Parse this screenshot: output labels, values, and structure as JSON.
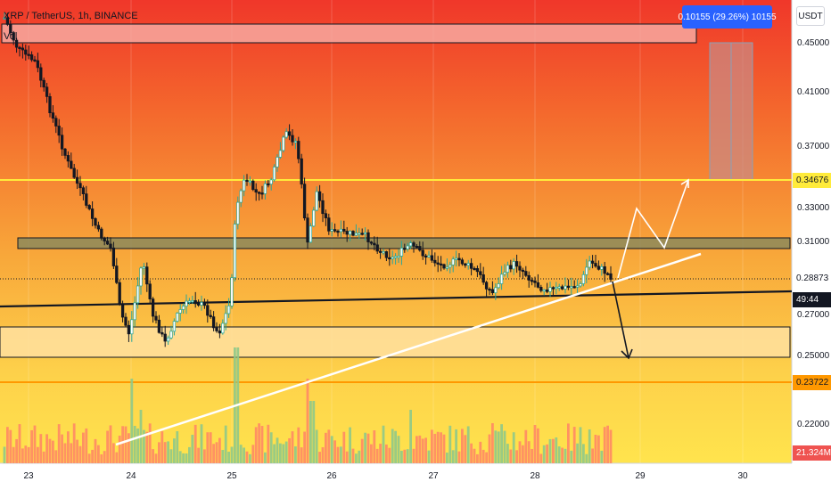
{
  "header": {
    "symbol": "XRP / TetherUS, 1h, BINANCE",
    "volume_label": "Vol",
    "unit_button": "USDT",
    "measure_badge": "0.10155 (29.26%) 10155"
  },
  "price_axis": {
    "ticks": [
      "0.45000",
      "0.41000",
      "0.37000",
      "0.33000",
      "0.31000",
      "0.27000",
      "0.25000",
      "0.22000"
    ],
    "tags": [
      {
        "id": "tag-resistance",
        "text": "0.34676",
        "bg": "#ffeb3b",
        "fg": "#131722"
      },
      {
        "id": "tag-last-price",
        "text": "0.28873",
        "bg": "#ffffff",
        "fg": "#131722"
      },
      {
        "id": "tag-countdown",
        "text": "49:44",
        "bg": "#131722",
        "fg": "#ffffff"
      },
      {
        "id": "tag-support",
        "text": "0.23722",
        "bg": "#ff9800",
        "fg": "#131722"
      },
      {
        "id": "tag-volume",
        "text": "21.324M",
        "bg": "#ef5350",
        "fg": "#ffffff"
      }
    ]
  },
  "time_axis": {
    "ticks": [
      "23",
      "24",
      "25",
      "26",
      "27",
      "28",
      "29",
      "30"
    ]
  },
  "colors": {
    "up": "#26a69a",
    "down": "#131722",
    "vol_up": "#8fc98a",
    "vol_down": "#ff8a65"
  },
  "icons": {
    "resistance_line": "horizontal-line",
    "projection": "arrow-icon"
  }
}
